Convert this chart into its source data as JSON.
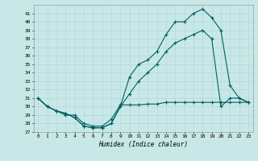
{
  "xlabel": "Humidex (Indice chaleur)",
  "bg_color": "#c8e8e8",
  "grid_color": "#b0d4d4",
  "line_color": "#006060",
  "xlim": [
    -0.5,
    23.5
  ],
  "ylim": [
    27,
    42
  ],
  "yticks": [
    27,
    28,
    29,
    30,
    31,
    32,
    33,
    34,
    35,
    36,
    37,
    38,
    39,
    40,
    41
  ],
  "xticks": [
    0,
    1,
    2,
    3,
    4,
    5,
    6,
    7,
    8,
    9,
    10,
    11,
    12,
    13,
    14,
    15,
    16,
    17,
    18,
    19,
    20,
    21,
    22,
    23
  ],
  "line1_x": [
    0,
    1,
    2,
    3,
    4,
    5,
    6,
    7,
    8,
    9,
    10,
    11,
    12,
    13,
    14,
    15,
    16,
    17,
    18,
    19,
    20,
    21,
    22,
    23
  ],
  "line1_y": [
    31.0,
    30.0,
    29.5,
    29.2,
    28.7,
    27.7,
    27.5,
    27.5,
    28.0,
    30.0,
    33.5,
    35.0,
    35.5,
    36.5,
    38.5,
    40.0,
    40.0,
    41.0,
    41.5,
    40.5,
    39.0,
    32.5,
    31.0,
    30.5
  ],
  "line2_x": [
    0,
    1,
    2,
    3,
    4,
    5,
    6,
    7,
    8,
    9,
    10,
    11,
    12,
    13,
    14,
    15,
    16,
    17,
    18,
    19,
    20,
    21,
    22,
    23
  ],
  "line2_y": [
    31.0,
    30.0,
    29.5,
    29.2,
    28.7,
    27.7,
    27.5,
    27.5,
    28.0,
    30.0,
    31.5,
    33.0,
    34.0,
    35.0,
    36.5,
    37.5,
    38.0,
    38.5,
    39.0,
    38.0,
    30.0,
    31.0,
    31.0,
    30.5
  ],
  "line3_x": [
    0,
    1,
    2,
    3,
    4,
    5,
    6,
    7,
    8,
    9,
    10,
    11,
    12,
    13,
    14,
    15,
    16,
    17,
    18,
    19,
    20,
    21,
    22,
    23
  ],
  "line3_y": [
    31.0,
    30.0,
    29.5,
    29.0,
    29.0,
    28.0,
    27.7,
    27.7,
    28.5,
    30.2,
    30.2,
    30.2,
    30.3,
    30.3,
    30.5,
    30.5,
    30.5,
    30.5,
    30.5,
    30.5,
    30.5,
    30.5,
    30.5,
    30.5
  ]
}
